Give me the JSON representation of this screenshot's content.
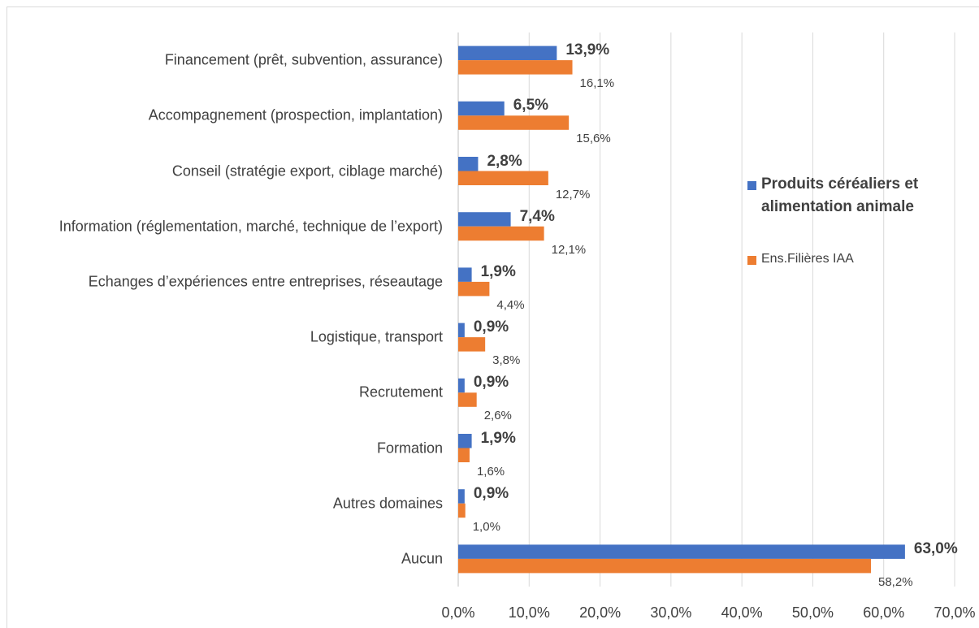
{
  "chart_data": {
    "type": "bar",
    "orientation": "horizontal",
    "categories": [
      "Financement (prêt, subvention, assurance)",
      "Accompagnement (prospection, implantation)",
      "Conseil (stratégie export, ciblage marché)",
      "Information (réglementation, marché, technique de l’export)",
      "Echanges d’expériences entre entreprises, réseautage",
      "Logistique, transport",
      "Recrutement",
      "Formation",
      "Autres domaines",
      "Aucun"
    ],
    "series": [
      {
        "name": "Produits céréaliers et alimentation animale",
        "color": "#4472c4",
        "values": [
          13.9,
          6.5,
          2.8,
          7.4,
          1.9,
          0.9,
          0.9,
          1.9,
          0.9,
          63.0
        ],
        "value_labels": [
          "13,9%",
          "6,5%",
          "2,8%",
          "7,4%",
          "1,9%",
          "0,9%",
          "0,9%",
          "1,9%",
          "0,9%",
          "63,0%"
        ]
      },
      {
        "name": "Ens.Filières IAA",
        "color": "#ed7d31",
        "values": [
          16.1,
          15.6,
          12.7,
          12.1,
          4.4,
          3.8,
          2.6,
          1.6,
          1.0,
          58.2
        ],
        "value_labels": [
          "16,1%",
          "15,6%",
          "12,7%",
          "12,1%",
          "4,4%",
          "3,8%",
          "2,6%",
          "1,6%",
          "1,0%",
          "58,2%"
        ]
      }
    ],
    "xlim": [
      0,
      70
    ],
    "xticks": [
      {
        "value": 0,
        "label": "0,0%"
      },
      {
        "value": 10,
        "label": "10,0%"
      },
      {
        "value": 20,
        "label": "20,0%"
      },
      {
        "value": 30,
        "label": "30,0%"
      },
      {
        "value": 40,
        "label": "40,0%"
      },
      {
        "value": 50,
        "label": "50,0%"
      },
      {
        "value": 60,
        "label": "60,0%"
      },
      {
        "value": 70,
        "label": "70,0%"
      }
    ],
    "grid": true,
    "legend": "right"
  }
}
